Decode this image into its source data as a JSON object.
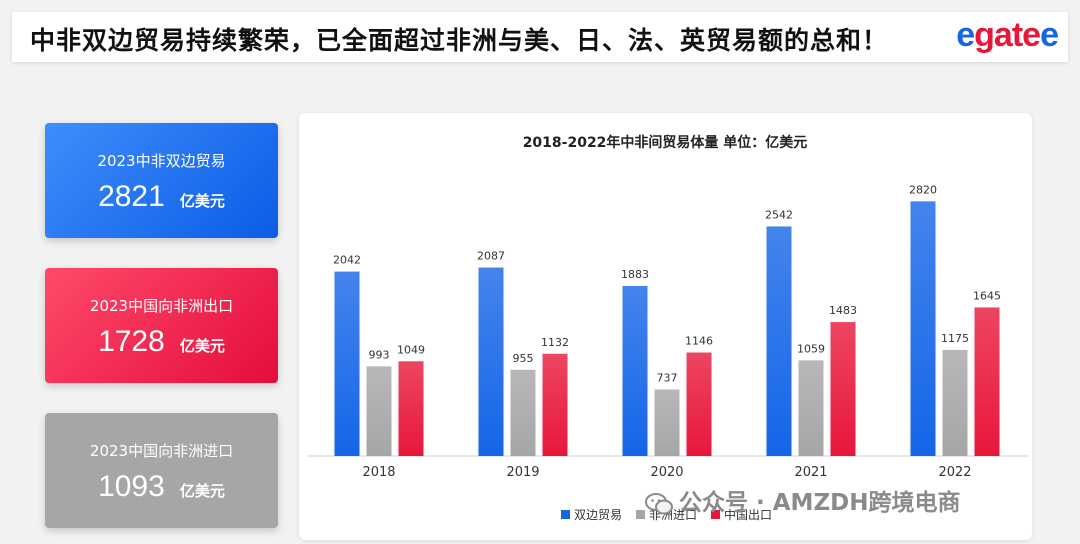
{
  "header": {
    "headline": "中非双边贸易持续繁荣，已全面超过非洲与美、日、法、英贸易额的总和！",
    "logo_text": "egatee"
  },
  "cards": [
    {
      "label": "2023中非双边贸易",
      "value": "2821",
      "unit": "亿美元",
      "color": "#1565e8"
    },
    {
      "label": "2023中国向非洲出口",
      "value": "1728",
      "unit": "亿美元",
      "color": "#e8173a"
    },
    {
      "label": "2023中国向非洲进口",
      "value": "1093",
      "unit": "亿美元",
      "color": "#a6a6a6"
    }
  ],
  "chart_data": {
    "type": "bar",
    "title": "2018-2022年中非间贸易体量 单位：亿美元",
    "categories": [
      "2018",
      "2019",
      "2020",
      "2021",
      "2022"
    ],
    "series": [
      {
        "name": "双边贸易",
        "color": "#1565e8",
        "values": [
          2042,
          2087,
          1883,
          2542,
          2820
        ]
      },
      {
        "name": "非洲进口",
        "color": "#a6a6a6",
        "values": [
          993,
          955,
          737,
          1059,
          1175
        ]
      },
      {
        "name": "中国出口",
        "color": "#e8173a",
        "values": [
          1049,
          1132,
          1146,
          1483,
          1645
        ]
      }
    ],
    "ylim": [
      0,
      3300
    ],
    "grid": false,
    "legend": "bottom-center",
    "data_labels": true
  },
  "watermark": "公众号 · AMZDH跨境电商"
}
